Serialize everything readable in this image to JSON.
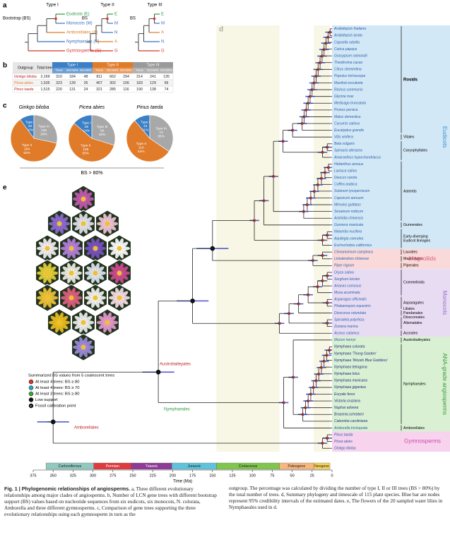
{
  "panel_letters": [
    "a",
    "b",
    "c",
    "d",
    "e"
  ],
  "panel_a": {
    "bootstrap_label": "Bootstrap (BS)",
    "types": [
      {
        "title": "Type I",
        "leaves": [
          "Eudicots (E)",
          "Monocots (M)",
          "Amborellales (A)",
          "Nymphaeales (N)",
          "Gymnosperms (G)"
        ],
        "leaf_colors": [
          "#2e9a45",
          "#3b6fc4",
          "#e07b2a",
          "#3b6fc4",
          "#d8342c"
        ]
      },
      {
        "title": "Type II",
        "bs": "BS",
        "leaves": [
          "E",
          "M",
          "N",
          "A",
          "G"
        ],
        "leaf_colors": [
          "#2e9a45",
          "#3b6fc4",
          "#3b6fc4",
          "#e07b2a",
          "#d8342c"
        ]
      },
      {
        "title": "Type III",
        "bs": "BS",
        "leaves": [
          "E",
          "M",
          "A",
          "N",
          "G"
        ],
        "leaf_colors": [
          "#2e9a45",
          "#3b6fc4",
          "#e07b2a",
          "#3b6fc4",
          "#d8342c"
        ]
      }
    ]
  },
  "table": {
    "header": [
      "Outgroup",
      "Total trees",
      "Type I",
      "Type II",
      "Type III"
    ],
    "header_colors": [
      "#3b7fc4",
      "#e07b2a",
      "#9a9a9a"
    ],
    "subheader": [
      "Trees",
      "BS>50%",
      "BS>80%"
    ],
    "rows": [
      [
        "Ginkgo biloba",
        "2,169",
        "310",
        "184",
        "48",
        "811",
        "662",
        "294",
        "314",
        "241",
        "135"
      ],
      [
        "Picea abies",
        "1,535",
        "323",
        "139",
        "26",
        "407",
        "302",
        "106",
        "183",
        "129",
        "56"
      ],
      [
        "Pinus taeda",
        "1,515",
        "220",
        "131",
        "24",
        "321",
        "285",
        "116",
        "190",
        "138",
        "74"
      ]
    ]
  },
  "pies": {
    "colors": [
      "#3b7fc4",
      "#e07b2a",
      "#a8a8a8"
    ],
    "footer": "BS > 80%",
    "charts": [
      {
        "title": "Ginkgo biloba",
        "slices": [
          {
            "name": "Type I",
            "value": 48,
            "label": "10%"
          },
          {
            "name": "Type II",
            "value": 294,
            "label": "62%"
          },
          {
            "name": "Type III",
            "value": 135,
            "label": "28%"
          }
        ]
      },
      {
        "title": "Picea abies",
        "slices": [
          {
            "name": "Type I",
            "value": 26,
            "label": "14%"
          },
          {
            "name": "Type II",
            "value": 106,
            "label": "56%"
          },
          {
            "name": "Type III",
            "value": 56,
            "label": "30%"
          }
        ]
      },
      {
        "title": "Pinus taeda",
        "slices": [
          {
            "name": "Type I",
            "value": 24,
            "label": "11%"
          },
          {
            "name": "Type II",
            "value": 116,
            "label": "54%"
          },
          {
            "name": "Type III",
            "value": 74,
            "label": "35%"
          }
        ]
      }
    ]
  },
  "legend": {
    "title": "Summarized BS values from 5 coalescent trees",
    "items": [
      {
        "label": "At least 4 trees: BS ≥ 80",
        "color": "#d8342c"
      },
      {
        "label": "At least 4 trees: BS ≥ 70",
        "color": "#2aa3c9"
      },
      {
        "label": "At least 3 trees: BS ≥ 80",
        "color": "#3aaa35"
      },
      {
        "label": "Low support",
        "color": "#111111"
      },
      {
        "label": "Fossil calibration point",
        "color": "#111111",
        "symbol": "F"
      }
    ]
  },
  "tree": {
    "tree_labels": [
      {
        "text": "Austrobaileyales",
        "color": "#c0262d"
      },
      {
        "text": "Nymphaeales",
        "color": "#2e9a45"
      },
      {
        "text": "Amborellales",
        "color": "#c0262d"
      }
    ],
    "groups": [
      {
        "label": "Eudicots",
        "color": "#d3e8f6",
        "text_color": "#3b8fd0",
        "orders": [
          {
            "label": [
              "Rosids"
            ],
            "species": [
              "Arabidopsis thaliana",
              "Arabidopsis lyrata",
              "Capsella rubella",
              "Carica papaya",
              "Gossypium raimondii",
              "Theobroma cacao",
              "Citrus clementina",
              "Populus trichocarpa",
              "Manihot esculenta",
              "Ricinus communis",
              "Glycine max",
              "Medicago truncatula",
              "Prunus persica",
              "Malus domestica",
              "Cucumis sativus",
              "Eucalyptus grandis"
            ]
          },
          {
            "label": [
              "Vitales"
            ],
            "species": [
              "Vitis vinifera"
            ]
          },
          {
            "label": [
              "Caryophyllales"
            ],
            "species": [
              "Beta vulgaris",
              "Spinacia oleracea",
              "Amaranthus hypochondriacus"
            ]
          },
          {
            "label": [
              "Asterids"
            ],
            "species": [
              "Helianthus annuus",
              "Lactuca sativa",
              "Daucus carota",
              "Coffea arabica",
              "Solanum lycopersicum",
              "Capsicum annuum",
              "Mimulus guttatus",
              "Sesamum indicum",
              "Actinidia chinensis"
            ]
          },
          {
            "label": [
              "Gunnerales"
            ],
            "species": [
              "Gunnera manicata"
            ]
          },
          {
            "label": [
              "Early-diverging",
              "Eudicot lineages"
            ],
            "species": [
              "Nelumbo nucifera",
              "Aquilegia coerulea",
              "Eschscholzia californica"
            ]
          }
        ]
      },
      {
        "label": "Magnoliids",
        "color": "#f9d9d9",
        "text_color": "#e0607a",
        "orders": [
          {
            "label": [
              "Laurales"
            ],
            "species": [
              "Cinnamomum camphora"
            ]
          },
          {
            "label": [
              "Magnoliales"
            ],
            "species": [
              "Liriodendron chinense"
            ]
          },
          {
            "label": [
              "Piperales"
            ],
            "species": [
              "Piper nigrum"
            ]
          }
        ]
      },
      {
        "label": "Monocots",
        "color": "#e8dcf3",
        "text_color": "#9a6cc8",
        "orders": [
          {
            "label": [
              "Commelinids"
            ],
            "species": [
              "Oryza sativa",
              "Sorghum bicolor",
              "Ananas comosus",
              "Musa acuminata"
            ]
          },
          {
            "label": [
              "Asparagales"
            ],
            "species": [
              "Asparagus officinalis",
              "Phalaenopsis equestris"
            ]
          },
          {
            "label": [
              "Liliales",
              "Pandanales",
              "Dioscoreales"
            ],
            "species": [
              "Dioscorea rotundata"
            ]
          },
          {
            "label": [
              "Alismatales"
            ],
            "species": [
              "Spirodela polyrhiza",
              "Zostera marina"
            ]
          },
          {
            "label": [
              "Acorales"
            ],
            "species": [
              "Acorus calamus"
            ]
          }
        ]
      },
      {
        "label": "ANA-grade angiosperms",
        "color": "#d9f0d3",
        "text_color": "#3a9a3a",
        "orders": [
          {
            "label": [
              "Austrobaileyales"
            ],
            "species": [
              "Illicium henryi"
            ]
          },
          {
            "label": [
              "Nymphaeales"
            ],
            "species": [
              "Nymphaea colorata",
              "Nymphaea 'Thong Garden'",
              "Nymphaea 'Woods Blue Goddess'",
              "Nymphaea tetragona",
              "Nymphaea lotus",
              "Nymphaea mexicana",
              "Nymphaea gigantea",
              "Euryale ferox",
              "Victoria cruziana",
              "Nuphar advena",
              "Brasenia schreberi",
              "Cabomba caroliniana"
            ]
          },
          {
            "label": [
              "Amborellales"
            ],
            "species": [
              "Amborella trichopoda"
            ]
          }
        ]
      },
      {
        "label": "Gymnosperms",
        "color": "#f7d3ee",
        "text_color": "#d048b0",
        "orders": [
          {
            "species": [
              "Pinus taeda",
              "Picea abies",
              "Ginkgo biloba"
            ]
          }
        ]
      }
    ]
  },
  "timescale": {
    "label": "Time (Ma)",
    "xlim": [
      375,
      0
    ],
    "xticks": [
      375,
      350,
      325,
      300,
      275,
      250,
      225,
      200,
      175,
      150,
      125,
      100,
      75,
      50,
      25,
      0
    ],
    "periods": [
      {
        "name": "Carboniferous",
        "start": 359,
        "end": 299,
        "color": "#8fc9c0"
      },
      {
        "name": "Permian",
        "start": 299,
        "end": 252,
        "color": "#e0393e"
      },
      {
        "name": "Triassic",
        "start": 252,
        "end": 201,
        "color": "#8e3a96"
      },
      {
        "name": "Jurassic",
        "start": 201,
        "end": 145,
        "color": "#5fc3dc"
      },
      {
        "name": "Cretaceous",
        "start": 145,
        "end": 66,
        "color": "#7fc64e"
      },
      {
        "name": "Paleogene",
        "start": 66,
        "end": 23,
        "color": "#f9b77e"
      },
      {
        "name": "Neogene",
        "start": 23,
        "end": 2.6,
        "color": "#f8d35a"
      }
    ]
  },
  "caption": {
    "title": "Fig. 1 | Phylogenomic relationships of angiosperms.",
    "left": "a, Three different evolutionary relationships among major clades of angiosperms. b, Number of LCN gene trees with different bootstrap support (BS) values based on nucleotide sequences from six eudicots, six monocots, N. colorata, Amborella and three different gymnosperms. c, Comparison of gene trees supporting the three evolutionary relationships using each gymnosperm in turn as the",
    "right": "outgroup. The percentage was calculated by dividing the number of type I, II or III trees (BS > 80%) by the total number of trees. d, Summary phylogeny and timescale of 115 plant species. Blue bar are nodes represent 95% credibility intervals of the estimated dates. e, The flowers of the 20 sampled water lilies in Nymphaeales used in d."
  }
}
